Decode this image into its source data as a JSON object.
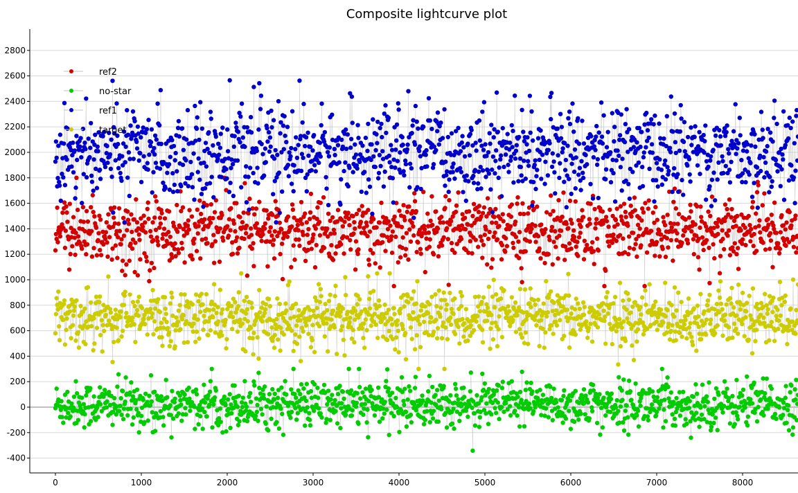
{
  "chart_data": {
    "type": "scatter",
    "title": "Composite lightcurve plot",
    "xlabel": "",
    "ylabel": "",
    "xlim": [
      -300,
      8650
    ],
    "ylim": [
      -500,
      2950
    ],
    "x_ticks": [
      0,
      1000,
      2000,
      3000,
      4000,
      5000,
      6000,
      7000,
      8000
    ],
    "y_ticks": [
      -400,
      -200,
      0,
      200,
      400,
      600,
      800,
      1000,
      1200,
      1400,
      1600,
      1800,
      2000,
      2200,
      2400,
      2600,
      2800
    ],
    "grid": "horizontal",
    "legend_placement": "top-left",
    "connector_color": "#c0c0c0",
    "series": [
      {
        "name": "ref2",
        "color": "#d40000",
        "x_range": [
          0,
          8650
        ],
        "count": 8650,
        "mean": 1380,
        "std": 130,
        "min": 950,
        "max": 1800
      },
      {
        "name": "no-star",
        "color": "#00cc00",
        "x_range": [
          0,
          8650
        ],
        "count": 8650,
        "mean": 20,
        "std": 90,
        "min": -360,
        "max": 300
      },
      {
        "name": "ref1",
        "color": "#0000cc",
        "x_range": [
          0,
          8650
        ],
        "count": 8650,
        "mean": 2000,
        "std": 170,
        "min": 1450,
        "max": 2800
      },
      {
        "name": "target",
        "color": "#cccc00",
        "x_range": [
          0,
          8650
        ],
        "count": 8650,
        "mean": 700,
        "std": 110,
        "min": 300,
        "max": 1050
      }
    ]
  }
}
